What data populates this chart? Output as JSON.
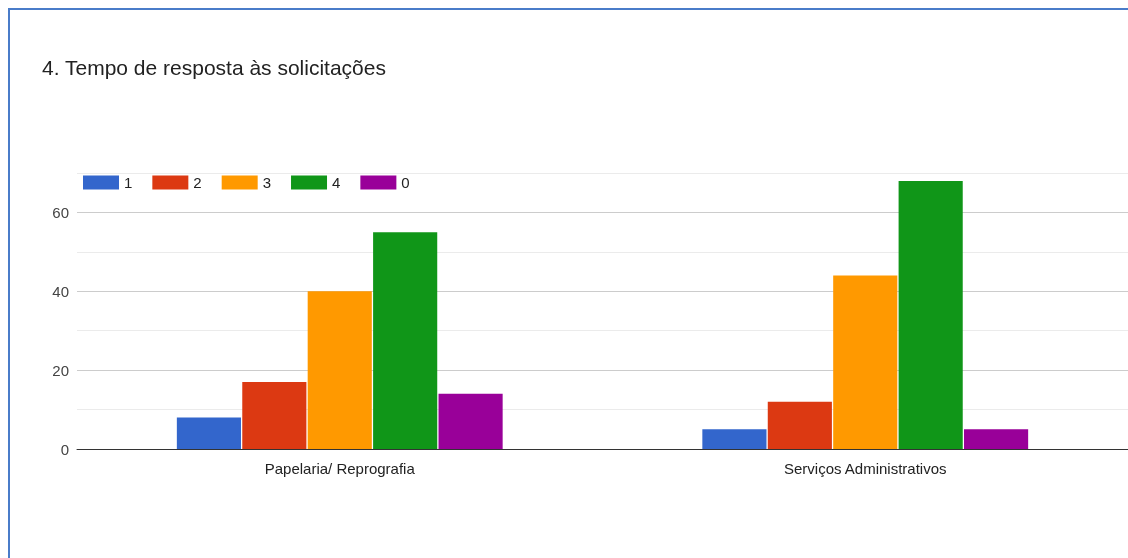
{
  "chart_data": {
    "type": "bar",
    "title": "4. Tempo de resposta às solicitações",
    "categories": [
      "Papelaria/ Reprografia",
      "Serviços Administrativos"
    ],
    "series": [
      {
        "name": "1",
        "color": "#3366cc",
        "values": [
          8,
          5
        ]
      },
      {
        "name": "2",
        "color": "#dc3912",
        "values": [
          17,
          12
        ]
      },
      {
        "name": "3",
        "color": "#ff9900",
        "values": [
          40,
          44
        ]
      },
      {
        "name": "4",
        "color": "#109618",
        "values": [
          55,
          68
        ]
      },
      {
        "name": "0",
        "color": "#990099",
        "values": [
          14,
          5
        ]
      }
    ],
    "ylim": [
      0,
      70
    ],
    "yticks": [
      0,
      {
        "value": 10,
        "label": null
      },
      20,
      {
        "value": 30,
        "label": null
      },
      40,
      {
        "value": 50,
        "label": null
      },
      60,
      {
        "value": 70,
        "label": null
      }
    ],
    "grid": "y",
    "legend": "top left"
  }
}
